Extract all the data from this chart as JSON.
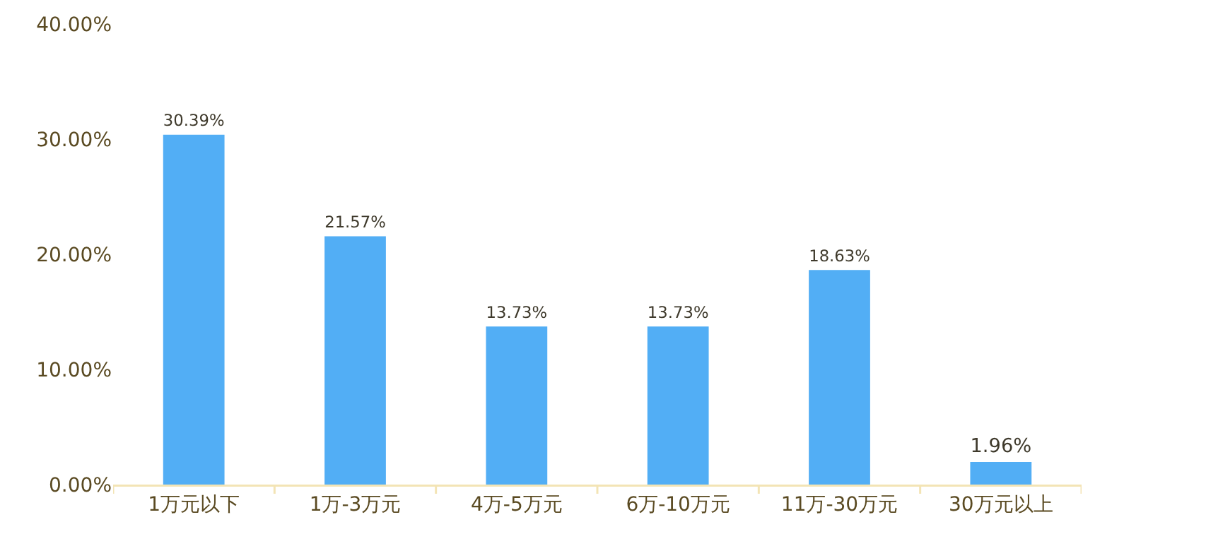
{
  "chart_data": {
    "type": "bar",
    "categories": [
      "1万元以下",
      "1万-3万元",
      "4万-5万元",
      "6万-10万元",
      "11万-30万元",
      "30万元以上"
    ],
    "values": [
      30.39,
      21.57,
      13.73,
      13.73,
      18.63,
      1.96
    ],
    "value_labels": [
      "30.39%",
      "21.57%",
      "13.73%",
      "13.73%",
      "18.63%",
      "1.96%"
    ],
    "color": "#52aef5",
    "ylim": [
      0,
      40
    ],
    "yticks": [
      {
        "value": 0,
        "label": "0.00%"
      },
      {
        "value": 10,
        "label": "10.00%"
      },
      {
        "value": 20,
        "label": "20.00%"
      },
      {
        "value": 30,
        "label": "30.00%"
      },
      {
        "value": 40,
        "label": "40.00%"
      }
    ],
    "grid": false,
    "legend": false
  }
}
